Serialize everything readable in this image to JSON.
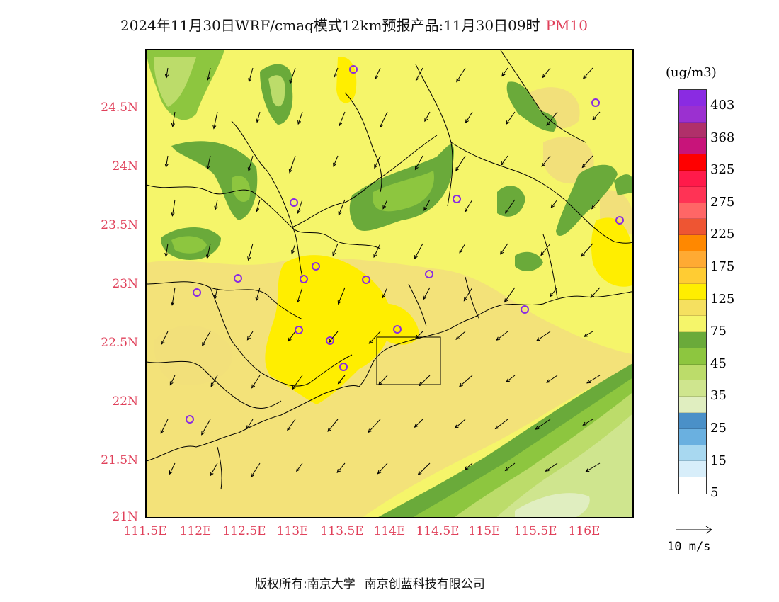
{
  "title": {
    "text": "2024年11月30日WRF/cmaq模式12km预报产品:11月30日09时",
    "pollutant": "PM10"
  },
  "axes": {
    "y_labels": [
      "24.5N",
      "24N",
      "23.5N",
      "23N",
      "22.5N",
      "22N",
      "21.5N",
      "21N"
    ],
    "x_labels": [
      "111.5E",
      "112E",
      "112.5E",
      "113E",
      "113.5E",
      "114E",
      "114.5E",
      "115E",
      "115.5E",
      "116E"
    ]
  },
  "legend": {
    "units": "(ug/m3)",
    "levels": [
      {
        "label": "403",
        "color": "#8a2be2"
      },
      {
        "label": "",
        "color": "#9b30d0"
      },
      {
        "label": "368",
        "color": "#b0306a"
      },
      {
        "label": "",
        "color": "#c8147a"
      },
      {
        "label": "325",
        "color": "#ff0000"
      },
      {
        "label": "",
        "color": "#ff1a4a"
      },
      {
        "label": "275",
        "color": "#ff3355"
      },
      {
        "label": "",
        "color": "#ff6666"
      },
      {
        "label": "225",
        "color": "#ee5533"
      },
      {
        "label": "",
        "color": "#ff8800"
      },
      {
        "label": "175",
        "color": "#ffaa33"
      },
      {
        "label": "",
        "color": "#ffcc33"
      },
      {
        "label": "125",
        "color": "#ffee00"
      },
      {
        "label": "",
        "color": "#f5e060"
      },
      {
        "label": "75",
        "color": "#f5f56a"
      },
      {
        "label": "",
        "color": "#6aaa3a"
      },
      {
        "label": "45",
        "color": "#8dc63f"
      },
      {
        "label": "",
        "color": "#bcdc6a"
      },
      {
        "label": "35",
        "color": "#cfe58e"
      },
      {
        "label": "",
        "color": "#e0eec0"
      },
      {
        "label": "25",
        "color": "#4a90c8"
      },
      {
        "label": "",
        "color": "#6ab0e0"
      },
      {
        "label": "15",
        "color": "#a8d8f0"
      },
      {
        "label": "",
        "color": "#d8eefa"
      },
      {
        "label": "5",
        "color": "#ffffff"
      }
    ]
  },
  "wind_reference": {
    "label": "10 m/s"
  },
  "footer": {
    "copyright": "版权所有:南京大学",
    "company": "南京创蓝科技有限公司"
  }
}
